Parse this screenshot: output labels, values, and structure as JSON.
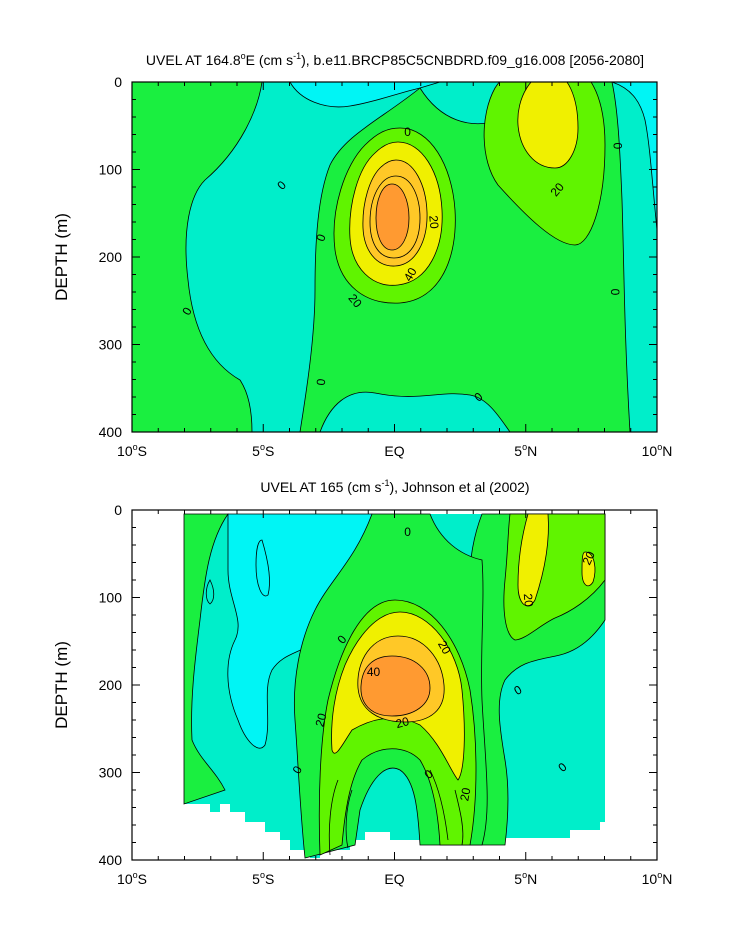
{
  "chart_data": [
    {
      "type": "heatmap",
      "title_main": "UVEL AT 164.8",
      "title_deg": "o",
      "title_e": "E (cm s",
      "title_exp": "-1",
      "title_rest": "), b.e11.BRCP85C5CNBDRD.f09_g16.008 [2056-2080]",
      "ylabel": "DEPTH (m)",
      "xlim": [
        -10,
        10
      ],
      "ylim": [
        0,
        400
      ],
      "x_ticks": [
        {
          "value": -10,
          "label": "10",
          "deg": "o",
          "hemi": "S"
        },
        {
          "value": -5,
          "label": "5",
          "deg": "o",
          "hemi": "S"
        },
        {
          "value": 0,
          "label": "EQ",
          "deg": "",
          "hemi": ""
        },
        {
          "value": 5,
          "label": "5",
          "deg": "o",
          "hemi": "N"
        },
        {
          "value": 10,
          "label": "10",
          "deg": "o",
          "hemi": "N"
        }
      ],
      "y_ticks": [
        {
          "value": 0,
          "label": "0"
        },
        {
          "value": 100,
          "label": "100"
        },
        {
          "value": 200,
          "label": "200"
        },
        {
          "value": 300,
          "label": "300"
        },
        {
          "value": 400,
          "label": "400"
        }
      ],
      "levels": [
        {
          "range": "< -10",
          "color": "#00f5f5"
        },
        {
          "range": "-10 to 0",
          "color": "#00eeca"
        },
        {
          "range": "0 to 10",
          "color": "#1aef40"
        },
        {
          "range": "10 to 20",
          "color": "#60f400"
        },
        {
          "range": "20 to 30",
          "color": "#f0f000"
        },
        {
          "range": "30 to 40",
          "color": "#ffc827"
        },
        {
          "range": "> 40",
          "color": "#ff9a31"
        }
      ],
      "contour_labels": [
        {
          "text": "0",
          "x": -4.3,
          "y": 118,
          "rot": -45
        },
        {
          "text": "0",
          "x": -7.9,
          "y": 262,
          "rot": -60
        },
        {
          "text": "0",
          "x": -2.8,
          "y": 178,
          "rot": -70
        },
        {
          "text": "0",
          "x": -2.8,
          "y": 343,
          "rot": -85
        },
        {
          "text": "0",
          "x": 0.5,
          "y": 57,
          "rot": 0
        },
        {
          "text": "0",
          "x": 3.2,
          "y": 360,
          "rot": -40
        },
        {
          "text": "0",
          "x": 8.5,
          "y": 73,
          "rot": 90
        },
        {
          "text": "0",
          "x": 8.4,
          "y": 240,
          "rot": 90
        },
        {
          "text": "20",
          "x": 1.5,
          "y": 160,
          "rot": 85
        },
        {
          "text": "20",
          "x": -1.5,
          "y": 250,
          "rot": 50
        },
        {
          "text": "40",
          "x": 0.6,
          "y": 220,
          "rot": -60
        },
        {
          "text": "20",
          "x": 6.2,
          "y": 123,
          "rot": -50
        }
      ]
    },
    {
      "type": "heatmap",
      "title_main": "UVEL AT 165 (cm s",
      "title_exp": "-1",
      "title_rest": "), Johnson et al (2002)",
      "ylabel": "DEPTH (m)",
      "xlim": [
        -10,
        10
      ],
      "ylim": [
        0,
        400
      ],
      "data_region": {
        "x_min": -8,
        "x_max": 8
      },
      "x_ticks": [
        {
          "value": -10,
          "label": "10",
          "deg": "o",
          "hemi": "S"
        },
        {
          "value": -5,
          "label": "5",
          "deg": "o",
          "hemi": "S"
        },
        {
          "value": 0,
          "label": "EQ",
          "deg": "",
          "hemi": ""
        },
        {
          "value": 5,
          "label": "5",
          "deg": "o",
          "hemi": "N"
        },
        {
          "value": 10,
          "label": "10",
          "deg": "o",
          "hemi": "N"
        }
      ],
      "y_ticks": [
        {
          "value": 0,
          "label": "0"
        },
        {
          "value": 100,
          "label": "100"
        },
        {
          "value": 200,
          "label": "200"
        },
        {
          "value": 300,
          "label": "300"
        },
        {
          "value": 400,
          "label": "400"
        }
      ],
      "contour_labels": [
        {
          "text": "0",
          "x": 0.5,
          "y": 25,
          "rot": 0
        },
        {
          "text": "0",
          "x": -2.0,
          "y": 148,
          "rot": -50
        },
        {
          "text": "0",
          "x": -3.7,
          "y": 297,
          "rot": -60
        },
        {
          "text": "0",
          "x": 1.3,
          "y": 302,
          "rot": -40
        },
        {
          "text": "0",
          "x": 4.7,
          "y": 206,
          "rot": -30
        },
        {
          "text": "0",
          "x": 6.4,
          "y": 294,
          "rot": -40
        },
        {
          "text": "20",
          "x": 1.9,
          "y": 157,
          "rot": 60
        },
        {
          "text": "20",
          "x": 0.3,
          "y": 243,
          "rot": -15
        },
        {
          "text": "20",
          "x": -2.8,
          "y": 240,
          "rot": -75
        },
        {
          "text": "20",
          "x": 2.7,
          "y": 325,
          "rot": -80
        },
        {
          "text": "40",
          "x": -0.8,
          "y": 185,
          "rot": 0
        },
        {
          "text": "20",
          "x": 5.1,
          "y": 103,
          "rot": 85
        },
        {
          "text": "20",
          "x": 7.4,
          "y": 55,
          "rot": -65
        }
      ]
    }
  ]
}
